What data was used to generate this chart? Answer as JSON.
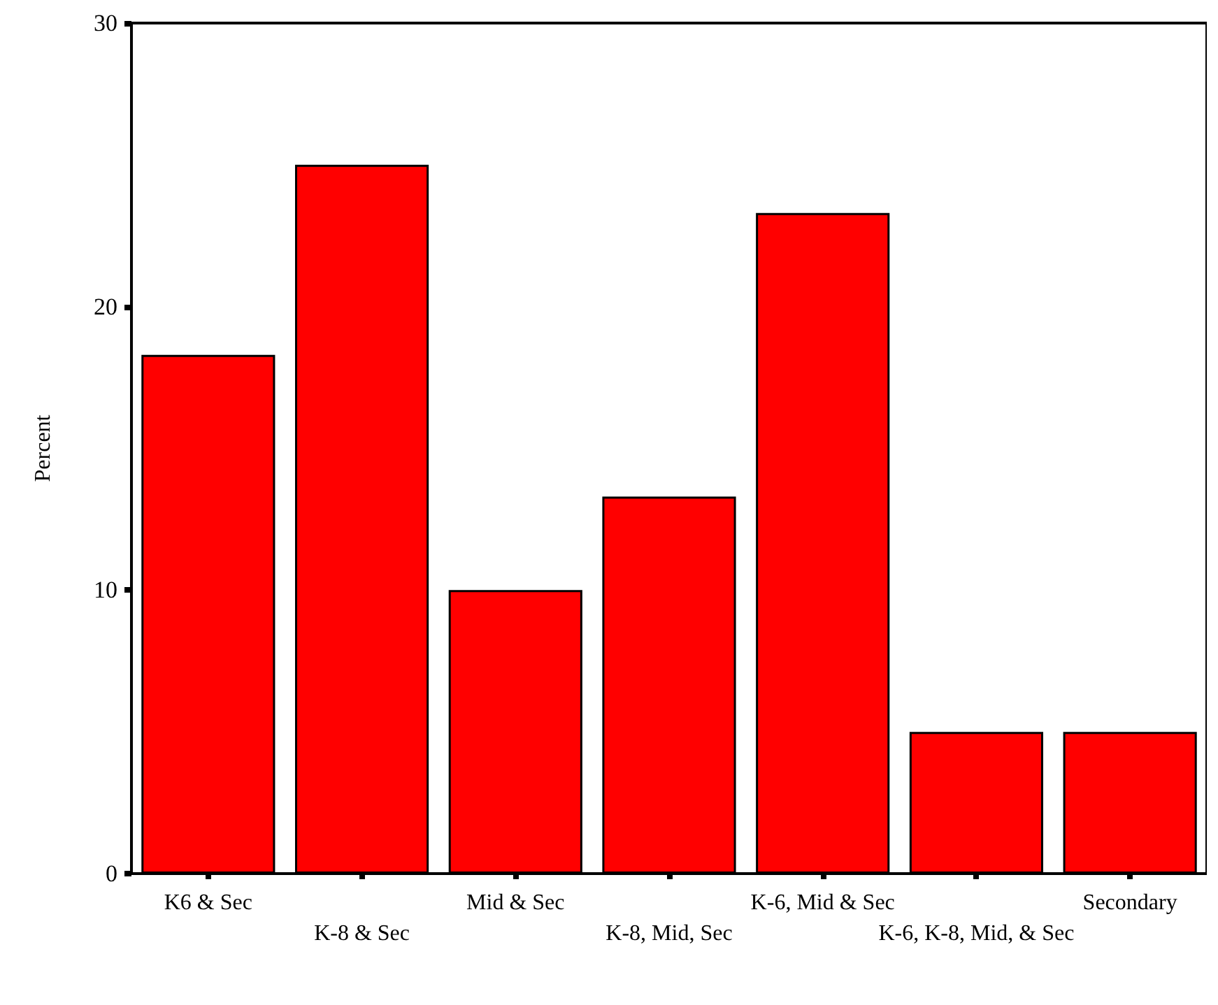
{
  "chart_data": {
    "type": "bar",
    "ylabel": "Percent",
    "categories": [
      "K6 & Sec",
      "K-8 & Sec",
      "Mid & Sec",
      "K-8, Mid, Sec",
      "K-6, Mid & Sec",
      "K-6, K-8, Mid, & Sec",
      "Secondary"
    ],
    "values": [
      18.3,
      25.0,
      10.0,
      13.3,
      23.3,
      5.0,
      5.0
    ],
    "color": "#ff0000",
    "ylim": [
      0,
      30
    ],
    "yticks": [
      0,
      10,
      20,
      30
    ],
    "grid": false
  }
}
